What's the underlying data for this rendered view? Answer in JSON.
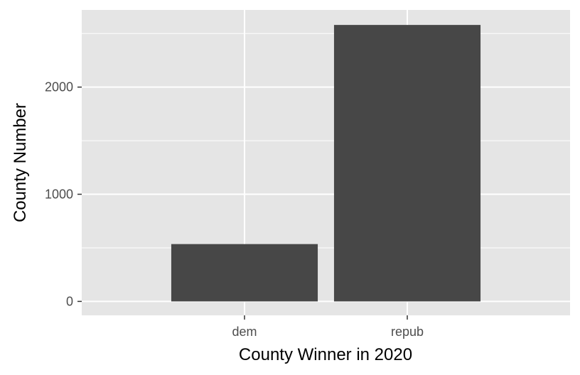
{
  "chart_data": {
    "type": "bar",
    "title": "",
    "xlabel": "County Winner in 2020",
    "ylabel": "County Number",
    "categories": [
      "dem",
      "repub"
    ],
    "values": [
      535,
      2580
    ],
    "ylim": [
      -130,
      2720
    ],
    "yticks": [
      0,
      1000,
      2000
    ],
    "ytick_labels": [
      "0",
      "1000",
      "2000"
    ],
    "grid": true,
    "legend": "none",
    "colors": {
      "panel_background": "#e5e5e5",
      "grid_line": "#ffffff",
      "bar_fill": "#474747",
      "tick_label": "#4d4d4d",
      "tick_mark": "#333333",
      "axis_title": "#000000"
    }
  }
}
